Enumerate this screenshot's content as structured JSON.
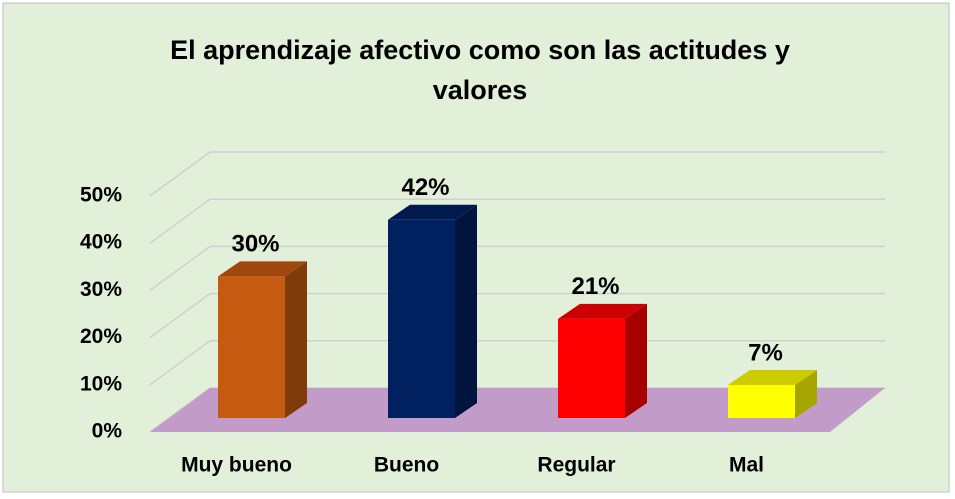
{
  "chart_data": {
    "type": "bar3d",
    "title": "El aprendizaje afectivo como son las actitudes y valores",
    "categories": [
      "Muy bueno",
      "Bueno",
      "Regular",
      "Mal"
    ],
    "values": [
      30,
      42,
      21,
      7
    ],
    "value_labels": [
      "30%",
      "42%",
      "21%",
      "7%"
    ],
    "colors": [
      "#c55a11",
      "#002060",
      "#ff0000",
      "#ffff00"
    ],
    "ylim": [
      0,
      50
    ],
    "yticks": [
      {
        "value": 0,
        "label": "0%"
      },
      {
        "value": 10,
        "label": "10%"
      },
      {
        "value": 20,
        "label": "20%"
      },
      {
        "value": 30,
        "label": "30%"
      },
      {
        "value": 40,
        "label": "40%"
      },
      {
        "value": 50,
        "label": "50%"
      }
    ],
    "grid": true
  }
}
